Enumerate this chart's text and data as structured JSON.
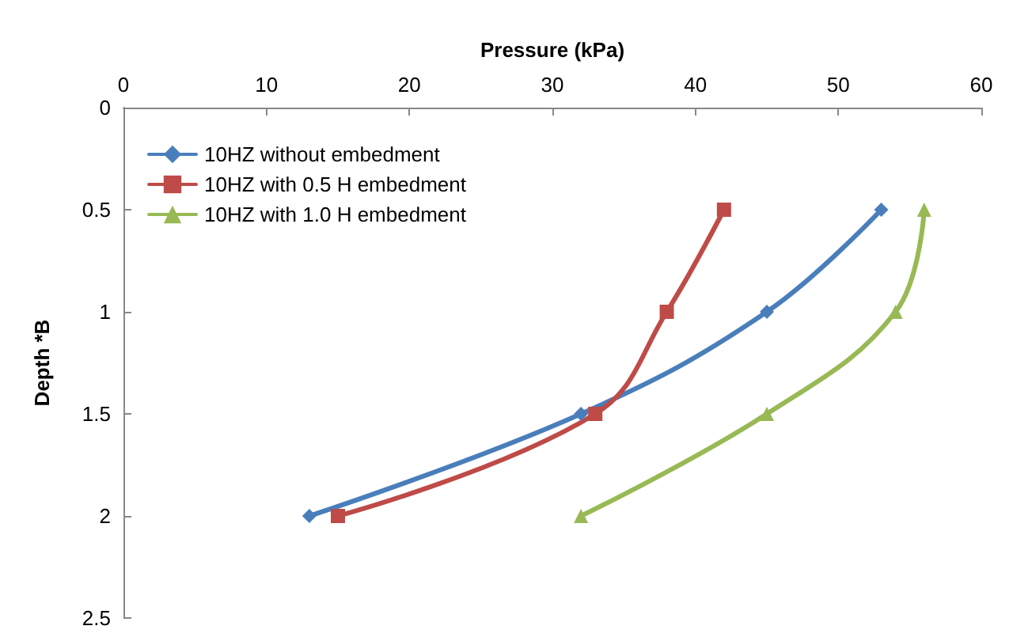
{
  "chart_data": {
    "type": "line",
    "xlabel": "Pressure (kPa)",
    "ylabel": "Depth *B",
    "xlim": [
      0,
      60
    ],
    "xticks": [
      0,
      10,
      20,
      30,
      40,
      50,
      60
    ],
    "ylim": [
      2.5,
      0
    ],
    "yticks": [
      0,
      0.5,
      1,
      1.5,
      2,
      2.5
    ],
    "grid": false,
    "legend": "top left",
    "series": [
      {
        "name": "10HZ without embedment",
        "color": "#4a7ebb",
        "marker": "diamond",
        "x": [
          53,
          45,
          32,
          13
        ],
        "values": [
          0.5,
          1,
          1.5,
          2
        ]
      },
      {
        "name": "10HZ with 0.5 H embedment",
        "color": "#be4b48",
        "marker": "square",
        "x": [
          42,
          38,
          33,
          15
        ],
        "values": [
          0.5,
          1,
          1.5,
          2
        ]
      },
      {
        "name": "10HZ with 1.0 H embedment",
        "color": "#98b954",
        "marker": "triangle",
        "x": [
          56,
          54,
          45,
          32
        ],
        "values": [
          0.5,
          1,
          1.5,
          2
        ]
      }
    ]
  }
}
